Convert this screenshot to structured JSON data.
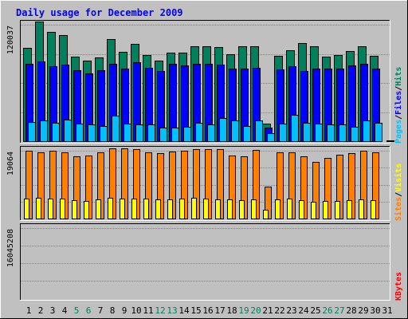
{
  "title": "Daily usage for December 2009",
  "colors": {
    "background": "#c0c0c0",
    "title": "#0000ff",
    "hits": "#00805c",
    "files": "#0000ff",
    "pages": "#00c0ff",
    "visits": "#ffff00",
    "sites": "#ff8000",
    "kbytes": "#ff0000",
    "weekend_label": "#00805c"
  },
  "chart_data": [
    {
      "type": "bar",
      "panel": "top",
      "ymax_label": "120037",
      "ylim": [
        0,
        120037
      ],
      "legend": [
        "Pages",
        "/",
        "Files",
        "/",
        "Hits"
      ],
      "categories": [
        "1",
        "2",
        "3",
        "4",
        "5",
        "6",
        "7",
        "8",
        "9",
        "10",
        "11",
        "12",
        "13",
        "14",
        "15",
        "16",
        "17",
        "18",
        "19",
        "20",
        "21",
        "22",
        "23",
        "24",
        "25",
        "26",
        "27",
        "28",
        "29",
        "30",
        "31"
      ],
      "weekend_days": [
        "5",
        "6",
        "12",
        "13",
        "19",
        "20",
        "26",
        "27"
      ],
      "series": [
        {
          "name": "Hits",
          "values": [
            96000,
            123000,
            113000,
            109000,
            87000,
            83000,
            86000,
            105000,
            92000,
            100000,
            89000,
            83000,
            91000,
            91000,
            98000,
            98000,
            97000,
            90000,
            98000,
            98000,
            18000,
            88000,
            94000,
            101000,
            98000,
            87000,
            89000,
            93000,
            98000,
            88000,
            0
          ]
        },
        {
          "name": "Files",
          "values": [
            80000,
            82000,
            77000,
            79000,
            73000,
            70000,
            73000,
            80000,
            75000,
            81000,
            76000,
            72000,
            80000,
            78000,
            80000,
            80000,
            79000,
            75000,
            75000,
            76000,
            14000,
            74000,
            77000,
            72000,
            75000,
            75000,
            75000,
            78000,
            80000,
            75000,
            0
          ]
        },
        {
          "name": "Pages",
          "values": [
            20000,
            21000,
            19000,
            22000,
            18000,
            17000,
            16000,
            26000,
            18000,
            17000,
            17000,
            14000,
            14000,
            15000,
            19000,
            17000,
            24000,
            21000,
            16000,
            21000,
            8000,
            18000,
            27000,
            19000,
            18000,
            17000,
            17000,
            15000,
            21000,
            19000,
            1000
          ]
        }
      ]
    },
    {
      "type": "bar",
      "panel": "middle",
      "ymax_label": "19064",
      "ylim": [
        0,
        19064
      ],
      "legend": [
        "Sites",
        "/",
        "Visits"
      ],
      "categories": [
        "1",
        "2",
        "3",
        "4",
        "5",
        "6",
        "7",
        "8",
        "9",
        "10",
        "11",
        "12",
        "13",
        "14",
        "15",
        "16",
        "17",
        "18",
        "19",
        "20",
        "21",
        "22",
        "23",
        "24",
        "25",
        "26",
        "27",
        "28",
        "29",
        "30",
        "31"
      ],
      "series": [
        {
          "name": "Sites",
          "values": [
            19000,
            18700,
            19000,
            18700,
            17500,
            17700,
            18600,
            19800,
            19800,
            19600,
            18600,
            18500,
            18900,
            19000,
            19500,
            19500,
            19500,
            17800,
            17600,
            19200,
            9000,
            18700,
            18700,
            17600,
            16000,
            17000,
            18000,
            18400,
            19000,
            18700,
            0
          ]
        },
        {
          "name": "Visits",
          "values": [
            5500,
            5800,
            5700,
            5600,
            5100,
            5000,
            5300,
            5800,
            5600,
            5500,
            5500,
            5300,
            5400,
            5600,
            5900,
            5500,
            5300,
            5300,
            5100,
            5300,
            2500,
            5300,
            5500,
            5100,
            4800,
            4900,
            5000,
            5100,
            5400,
            5200,
            0
          ]
        }
      ]
    },
    {
      "type": "bar",
      "panel": "bottom",
      "ymax_label": "16045208",
      "ylim": [
        0,
        16045208
      ],
      "legend": [
        "KBytes"
      ],
      "categories": [
        "1",
        "2",
        "3",
        "4",
        "5",
        "6",
        "7",
        "8",
        "9",
        "10",
        "11",
        "12",
        "13",
        "14",
        "15",
        "16",
        "17",
        "18",
        "19",
        "20",
        "21",
        "22",
        "23",
        "24",
        "25",
        "26",
        "27",
        "28",
        "29",
        "30",
        "31"
      ],
      "series": [
        {
          "name": "KBytes",
          "values": [
            11400,
            13200,
            13200,
            11400,
            11000,
            10700,
            11400,
            11400,
            11400,
            12000,
            10500,
            11200,
            12100,
            11100,
            11500,
            11000,
            12500,
            13000,
            14000,
            17900,
            5200,
            10500,
            9700,
            10500,
            11400,
            11400,
            10500,
            10900,
            11400,
            13200,
            0
          ]
        }
      ]
    }
  ]
}
